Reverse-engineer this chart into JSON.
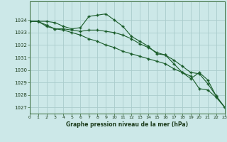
{
  "background_color": "#cce8e8",
  "grid_color": "#aacccc",
  "line_color": "#1a5c2a",
  "xlabel": "Graphe pression niveau de la mer (hPa)",
  "xlim": [
    0,
    23
  ],
  "ylim": [
    1026.5,
    1035.5
  ],
  "yticks": [
    1027,
    1028,
    1029,
    1030,
    1031,
    1032,
    1033,
    1034
  ],
  "xticks": [
    0,
    1,
    2,
    3,
    4,
    5,
    6,
    7,
    8,
    9,
    10,
    11,
    12,
    13,
    14,
    15,
    16,
    17,
    18,
    19,
    20,
    21,
    22,
    23
  ],
  "series": [
    [
      1033.9,
      1033.9,
      1033.9,
      1033.8,
      1033.5,
      1033.3,
      1033.4,
      1034.3,
      1034.4,
      1034.5,
      1034.0,
      1033.5,
      1032.7,
      1032.3,
      1031.9,
      1031.3,
      1031.2,
      1030.5,
      1029.8,
      1029.3,
      1029.8,
      1029.2,
      1027.9,
      1027.0
    ],
    [
      1033.9,
      1033.9,
      1033.6,
      1033.3,
      1033.3,
      1033.2,
      1033.1,
      1033.2,
      1033.2,
      1033.1,
      1033.0,
      1032.8,
      1032.5,
      1032.1,
      1031.8,
      1031.4,
      1031.2,
      1030.8,
      1030.3,
      1029.8,
      1029.7,
      1028.9,
      1027.9,
      1027.0
    ],
    [
      1033.9,
      1033.9,
      1033.5,
      1033.3,
      1033.2,
      1033.0,
      1032.8,
      1032.5,
      1032.3,
      1032.0,
      1031.8,
      1031.5,
      1031.3,
      1031.1,
      1030.9,
      1030.7,
      1030.5,
      1030.1,
      1029.8,
      1029.5,
      1028.5,
      1028.4,
      1027.8,
      1027.0
    ]
  ]
}
